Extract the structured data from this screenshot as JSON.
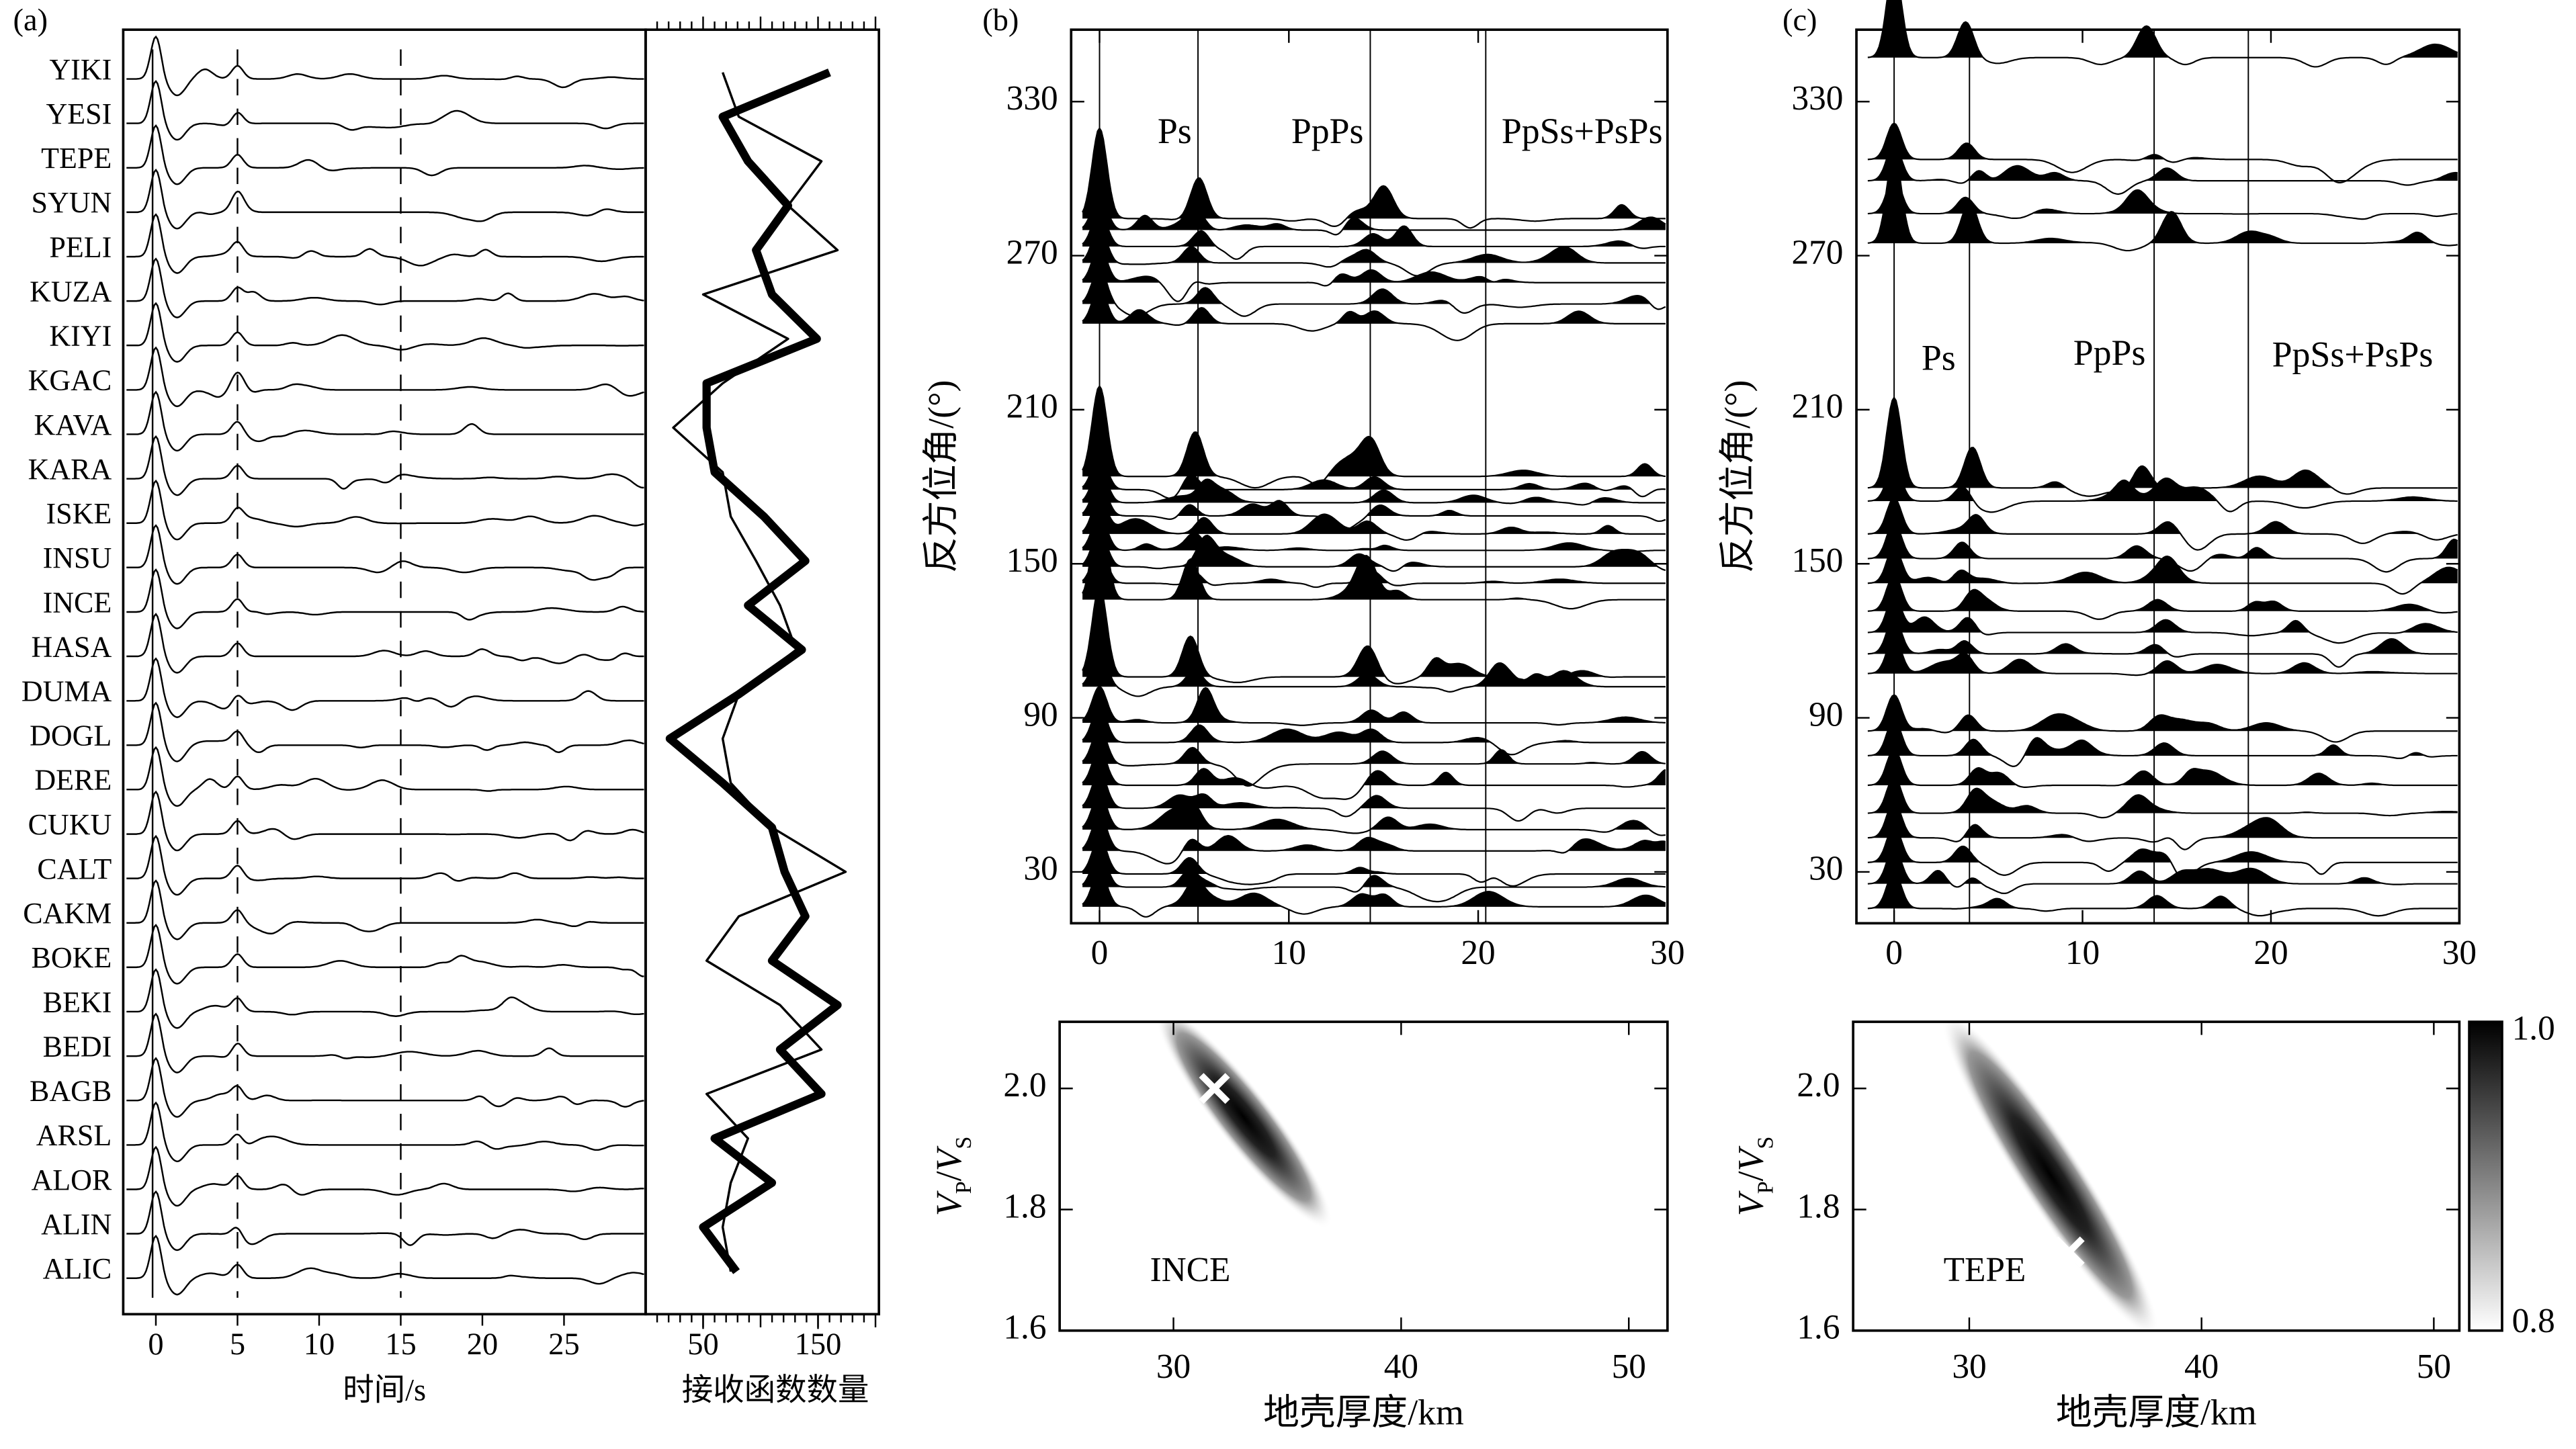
{
  "chart_data": [
    {
      "type": "waveform-stack",
      "panel": "(a)",
      "categories": [
        "YIKI",
        "YESI",
        "TEPE",
        "SYUN",
        "PELI",
        "KUZA",
        "KIYI",
        "KGAC",
        "KAVA",
        "KARA",
        "ISKE",
        "INSU",
        "INCE",
        "HASA",
        "DUMA",
        "DOGL",
        "DERE",
        "CUKU",
        "CALT",
        "CAKM",
        "BOKE",
        "BEKI",
        "BEDI",
        "BAGB",
        "ARSL",
        "ALOR",
        "ALIN",
        "ALIC"
      ],
      "xlim": [
        -2,
        30
      ],
      "xticks": [
        0,
        5,
        10,
        15,
        20,
        25
      ],
      "xlabel": "时间/s",
      "reference_lines": [
        5,
        15
      ],
      "color": "#000000"
    },
    {
      "type": "count-line",
      "xlim": [
        0,
        203
      ],
      "xticks": [
        50,
        150
      ],
      "xlabel": "接收函数数量",
      "series": [
        {
          "color": "#000000",
          "width": 5,
          "values": [
            160,
            67,
            89,
            124,
            96,
            110,
            149,
            53,
            53,
            60,
            103,
            139,
            89,
            136,
            81,
            21,
            67,
            110,
            121,
            139,
            110,
            167,
            117,
            153,
            60,
            110,
            50,
            79
          ]
        },
        {
          "color": "#000000",
          "width": 1.4,
          "values": [
            67,
            81,
            153,
            124,
            167,
            50,
            124,
            67,
            24,
            67,
            74,
            96,
            117,
            131,
            81,
            67,
            74,
            110,
            174,
            81,
            53,
            117,
            153,
            53,
            89,
            74,
            67,
            74
          ]
        }
      ]
    },
    {
      "type": "azimuth-stack",
      "panel": "(b)",
      "ylabel": "反方位角/(°)",
      "xlim": [
        -1.5,
        30
      ],
      "xticks": [
        0,
        10,
        20,
        30
      ],
      "ylim": [
        10,
        358
      ],
      "yticks": [
        30,
        90,
        150,
        210,
        270,
        330
      ],
      "phases": [
        {
          "label": "Ps",
          "time": 5.2
        },
        {
          "label": "PpPs",
          "time": 14.3
        },
        {
          "label": "PpSs+PsPs",
          "time": 20.4
        }
      ]
    },
    {
      "type": "azimuth-stack",
      "panel": "(c)",
      "ylabel": "反方位角/(°)",
      "xlim": [
        -2,
        30
      ],
      "xticks": [
        0,
        10,
        20,
        30
      ],
      "ylim": [
        10,
        358
      ],
      "yticks": [
        30,
        90,
        150,
        210,
        270,
        330
      ],
      "phases": [
        {
          "label": "Ps",
          "time": 4.0
        },
        {
          "label": "PpPs",
          "time": 13.8
        },
        {
          "label": "PpSs+PsPs",
          "time": 18.8
        }
      ]
    },
    {
      "type": "hk-stack",
      "station": "INCE",
      "xlabel": "地壳厚度/km",
      "ylabel_parts": [
        "V",
        "P",
        "/",
        "V",
        "S"
      ],
      "xlim": [
        25,
        51.7
      ],
      "xticks": [
        30,
        40,
        50
      ],
      "ylim": [
        1.6,
        2.11
      ],
      "yticks": [
        {
          "value": 1.6,
          "label": "1.6"
        },
        {
          "value": 1.8,
          "label": "1.8"
        },
        {
          "value": 2,
          "label": "2.0"
        }
      ],
      "best": {
        "x": 31.8,
        "y": 2.0
      }
    },
    {
      "type": "hk-stack",
      "station": "TEPE",
      "xlabel": "地壳厚度/km",
      "ylabel_parts": [
        "V",
        "P",
        "/",
        "V",
        "S"
      ],
      "xlim": [
        25,
        51.1
      ],
      "xticks": [
        30,
        40,
        50
      ],
      "ylim": [
        1.6,
        2.11
      ],
      "yticks": [
        {
          "value": 1.6,
          "label": "1.6"
        },
        {
          "value": 1.8,
          "label": "1.8"
        },
        {
          "value": 2,
          "label": "2.0"
        }
      ],
      "best": {
        "x": 34.3,
        "y": 1.73
      }
    },
    {
      "type": "colorbar",
      "ylim": [
        0.8,
        1.0
      ],
      "yticks": [
        {
          "value": 0.8,
          "label": "0.8"
        },
        {
          "value": 1,
          "label": "1.0"
        }
      ]
    }
  ]
}
